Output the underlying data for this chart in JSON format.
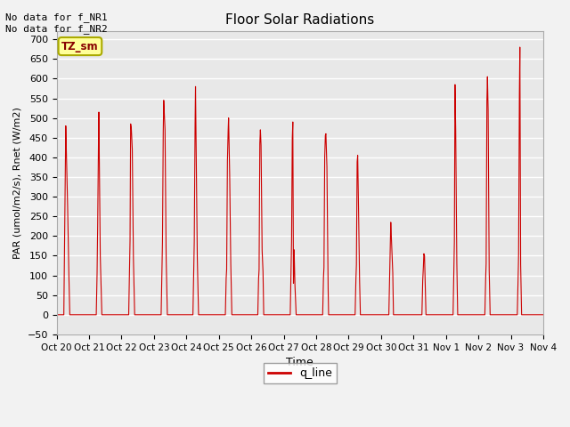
{
  "title": "Floor Solar Radiations",
  "xlabel": "Time",
  "ylabel": "PAR (umol/m2/s), Rnet (W/m2)",
  "ylim": [
    -50,
    720
  ],
  "yticks": [
    -50,
    0,
    50,
    100,
    150,
    200,
    250,
    300,
    350,
    400,
    450,
    500,
    550,
    600,
    650,
    700
  ],
  "annotation_text": "No data for f_NR1\nNo data for f_NR2",
  "legend_label": "q_line",
  "legend_color": "#cc0000",
  "tz_label": "TZ_sm",
  "tz_bg": "#ffff99",
  "tz_border": "#aaaa00",
  "line_color": "#cc0000",
  "plot_bg": "#e8e8e8",
  "fig_bg": "#f2f2f2",
  "x_tick_labels": [
    "Oct 20",
    "Oct 21",
    "Oct 22",
    "Oct 23",
    "Oct 24",
    "Oct 25",
    "Oct 26",
    "Oct 27",
    "Oct 28",
    "Oct 29",
    "Oct 30",
    "Oct 31",
    "Nov 1",
    "Nov 2",
    "Nov 3",
    "Nov 4"
  ],
  "signal": [
    [
      0,
      0,
      0.22,
      0,
      0.24,
      160,
      0.26,
      310,
      0.28,
      480,
      0.33,
      310,
      0.36,
      165,
      0.38,
      85,
      0.4,
      0,
      1.0,
      0
    ],
    [
      1.0,
      0,
      1.22,
      0,
      1.24,
      75,
      1.26,
      190,
      1.28,
      385,
      1.3,
      515,
      1.34,
      160,
      1.37,
      75,
      1.39,
      0,
      2.0,
      0
    ],
    [
      2.0,
      0,
      2.22,
      0,
      2.24,
      85,
      2.26,
      165,
      2.28,
      485,
      2.3,
      475,
      2.33,
      425,
      2.36,
      165,
      2.38,
      85,
      2.4,
      0,
      3.0,
      0
    ],
    [
      3.0,
      0,
      3.22,
      0,
      3.24,
      85,
      3.26,
      165,
      3.28,
      435,
      3.3,
      545,
      3.34,
      475,
      3.37,
      165,
      3.39,
      80,
      3.41,
      0,
      4.0,
      0
    ],
    [
      4.0,
      0,
      4.2,
      0,
      4.22,
      85,
      4.24,
      165,
      4.26,
      435,
      4.28,
      580,
      4.3,
      435,
      4.33,
      165,
      4.35,
      85,
      4.37,
      0,
      5.0,
      0
    ],
    [
      5.0,
      0,
      5.2,
      0,
      5.22,
      85,
      5.24,
      115,
      5.26,
      375,
      5.28,
      455,
      5.3,
      500,
      5.33,
      380,
      5.36,
      160,
      5.38,
      75,
      5.4,
      0,
      6.0,
      0
    ],
    [
      6.0,
      0,
      6.2,
      0,
      6.22,
      85,
      6.24,
      115,
      6.26,
      430,
      6.28,
      470,
      6.3,
      435,
      6.33,
      170,
      6.36,
      115,
      6.38,
      0,
      7.0,
      0
    ],
    [
      7.0,
      0,
      7.2,
      0,
      7.22,
      85,
      7.24,
      165,
      7.26,
      440,
      7.28,
      490,
      7.3,
      80,
      7.32,
      165,
      7.34,
      85,
      7.36,
      50,
      7.38,
      0,
      8.0,
      0
    ],
    [
      8.0,
      0,
      8.2,
      0,
      8.22,
      85,
      8.24,
      120,
      8.26,
      390,
      8.28,
      455,
      8.3,
      460,
      8.33,
      385,
      8.36,
      120,
      8.38,
      0,
      9.0,
      0
    ],
    [
      9.0,
      0,
      9.2,
      0,
      9.22,
      80,
      9.24,
      120,
      9.26,
      385,
      9.28,
      405,
      9.3,
      310,
      9.33,
      120,
      9.36,
      0,
      10.0,
      0
    ],
    [
      10.0,
      0,
      10.24,
      0,
      10.26,
      80,
      10.28,
      170,
      10.3,
      235,
      10.33,
      175,
      10.36,
      115,
      10.38,
      0,
      11.0,
      0
    ],
    [
      11.0,
      0,
      11.26,
      0,
      11.28,
      80,
      11.3,
      110,
      11.32,
      155,
      11.34,
      150,
      11.36,
      80,
      11.38,
      0,
      12.0,
      0
    ],
    [
      12.0,
      0,
      12.22,
      0,
      12.24,
      85,
      12.26,
      165,
      12.28,
      585,
      12.3,
      490,
      12.33,
      165,
      12.36,
      0,
      13.0,
      0
    ],
    [
      13.0,
      0,
      13.2,
      0,
      13.22,
      80,
      13.24,
      130,
      13.26,
      530,
      13.28,
      605,
      13.3,
      535,
      13.33,
      130,
      13.36,
      0,
      14.0,
      0
    ],
    [
      14.0,
      0,
      14.2,
      0,
      14.22,
      80,
      14.24,
      145,
      14.26,
      520,
      14.28,
      680,
      14.3,
      145,
      14.33,
      0,
      15.0,
      0
    ]
  ]
}
